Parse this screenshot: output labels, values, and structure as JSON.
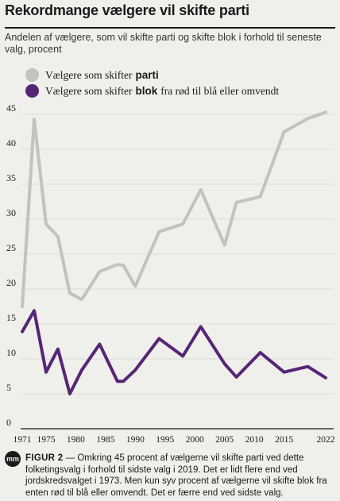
{
  "chart_data": {
    "type": "line",
    "title": "Rekordmange vælgere vil skifte parti",
    "subtitle": "Andelen af vælgere, som vil skifte parti og skifte blok i forhold til seneste valg, procent",
    "xlabel": "",
    "ylabel": "",
    "ylim": [
      0,
      45
    ],
    "yticks": [
      0,
      5,
      10,
      15,
      20,
      25,
      30,
      35,
      40,
      45
    ],
    "xticks": [
      "1971",
      "1975",
      "1980",
      "1985",
      "1990",
      "1995",
      "2000",
      "2005",
      "2010",
      "2015",
      "2022"
    ],
    "grid": true,
    "legend_position": "top-left",
    "x": [
      1971,
      1973,
      1975,
      1977,
      1979,
      1981,
      1984,
      1987,
      1988,
      1990,
      1994,
      1998,
      2001,
      2005,
      2007,
      2011,
      2015,
      2019,
      2022
    ],
    "series": [
      {
        "name": "Vælgere som skifter parti",
        "name_plain": "Vælgere som skifter",
        "name_bold": "parti",
        "name_tail": "",
        "color": "#c3c2bb",
        "values": [
          17.5,
          44.3,
          29.3,
          27.5,
          19.4,
          18.5,
          22.5,
          23.5,
          23.4,
          20.4,
          28.2,
          29.3,
          34.2,
          26.3,
          32.4,
          33.2,
          42.5,
          44.4,
          45.3
        ]
      },
      {
        "name": "Vælgere som skifter blok fra rød til blå eller omvendt",
        "name_plain": "Vælgere som skifter",
        "name_bold": "blok",
        "name_tail": "fra rød til blå eller omvendt",
        "color": "#562676",
        "values": [
          13.9,
          16.9,
          8.1,
          11.4,
          5.0,
          8.4,
          12.1,
          6.8,
          6.8,
          8.4,
          12.9,
          10.4,
          14.6,
          9.3,
          7.4,
          10.9,
          8.1,
          8.9,
          7.3
        ]
      }
    ]
  },
  "footer": {
    "logo": "mm",
    "label": "FIGUR 2",
    "text": "— Omkring 45 procent af vælgerne vil skifte parti ved dette folketingsvalg i forhold til sidste valg i 2019. Det er lidt flere end ved jordskredsvalget i 1973. Men kun syv procent af vælgerne vil skifte blok fra enten rød til blå eller omvendt. Det er færre end ved sidste valg."
  },
  "colors": {
    "background": "#efefeb",
    "grid": "#d6d6d0",
    "text": "#1a1a1a"
  }
}
